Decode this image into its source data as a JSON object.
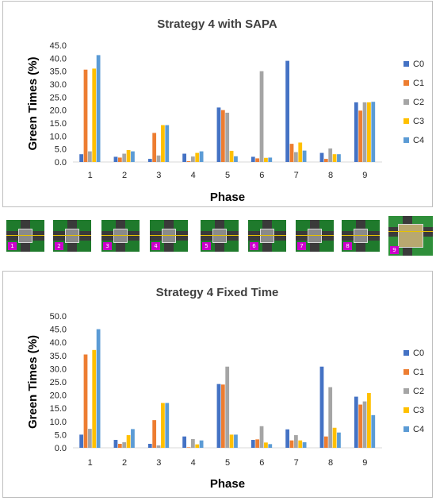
{
  "colors": {
    "C0": "#4472c4",
    "C1": "#ed7d31",
    "C2": "#a5a5a5",
    "C3": "#ffc000",
    "C4": "#5b9bd5"
  },
  "chart_data": [
    {
      "type": "bar",
      "title": "Strategy 4 with SAPA",
      "xlabel": "Phase",
      "ylabel": "Green Times (%)",
      "ylim": [
        0,
        45
      ],
      "yticks": [
        "0.0",
        "5.0",
        "10.0",
        "15.0",
        "20.0",
        "25.0",
        "30.0",
        "35.0",
        "40.0",
        "45.0"
      ],
      "categories": [
        "1",
        "2",
        "3",
        "4",
        "5",
        "6",
        "7",
        "8",
        "9"
      ],
      "legend_position": "right",
      "grid": false,
      "series": [
        {
          "name": "C0",
          "values": [
            3.0,
            2.0,
            1.2,
            3.2,
            21.0,
            2.0,
            39.0,
            3.5,
            23.0
          ]
        },
        {
          "name": "C1",
          "values": [
            35.6,
            1.7,
            11.2,
            0.3,
            20.0,
            1.4,
            7.0,
            1.2,
            19.8
          ]
        },
        {
          "name": "C2",
          "values": [
            4.1,
            3.2,
            2.5,
            2.1,
            19.0,
            35.0,
            3.8,
            5.2,
            23.0
          ]
        },
        {
          "name": "C3",
          "values": [
            36.0,
            4.6,
            14.2,
            3.5,
            4.3,
            1.6,
            7.5,
            3.0,
            23.0
          ]
        },
        {
          "name": "C4",
          "values": [
            41.2,
            4.1,
            14.2,
            4.1,
            2.2,
            1.7,
            4.4,
            3.0,
            23.2
          ]
        }
      ]
    },
    {
      "type": "bar",
      "title": "Strategy 4 Fixed Time",
      "xlabel": "Phase",
      "ylabel": "Green Times (%)",
      "ylim": [
        0,
        50
      ],
      "yticks": [
        "0.0",
        "5.0",
        "10.0",
        "15.0",
        "20.0",
        "25.0",
        "30.0",
        "35.0",
        "40.0",
        "45.0",
        "50.0"
      ],
      "categories": [
        "1",
        "2",
        "3",
        "4",
        "5",
        "6",
        "7",
        "8",
        "9"
      ],
      "legend_position": "right",
      "grid": false,
      "series": [
        {
          "name": "C0",
          "values": [
            5.0,
            3.0,
            1.5,
            4.3,
            24.2,
            3.0,
            7.0,
            30.8,
            19.4
          ]
        },
        {
          "name": "C1",
          "values": [
            35.4,
            1.5,
            10.5,
            0.2,
            24.0,
            3.2,
            2.8,
            4.3,
            16.4
          ]
        },
        {
          "name": "C2",
          "values": [
            7.2,
            2.1,
            0.9,
            3.3,
            30.8,
            8.2,
            4.8,
            23.0,
            17.6
          ]
        },
        {
          "name": "C3",
          "values": [
            37.1,
            4.8,
            17.0,
            1.3,
            5.0,
            2.0,
            2.8,
            7.6,
            20.8
          ]
        },
        {
          "name": "C4",
          "values": [
            45.0,
            7.1,
            17.0,
            2.8,
            5.0,
            1.4,
            2.1,
            5.8,
            12.4
          ]
        }
      ]
    }
  ],
  "phase_strip": {
    "labels": [
      "1",
      "2",
      "3",
      "4",
      "5",
      "6",
      "7",
      "8",
      "9"
    ]
  }
}
